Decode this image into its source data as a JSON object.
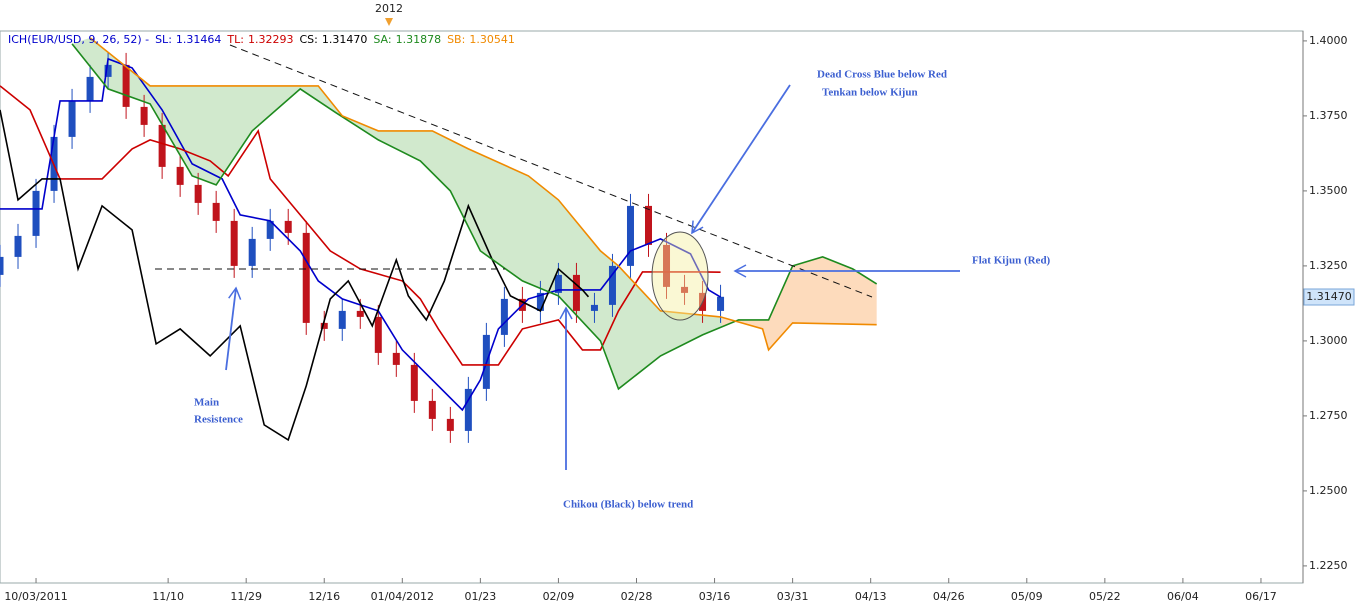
{
  "chart_data": {
    "type": "candlestick",
    "header": "ICH(EUR/USD, 9, 26, 52) -",
    "year_marker": "2012",
    "xlim": [
      0,
      217
    ],
    "ylim": [
      1.2193,
      1.4033
    ],
    "yticks": [
      {
        "value": 1.225,
        "label": "1.2250"
      },
      {
        "value": 1.25,
        "label": "1.2500"
      },
      {
        "value": 1.275,
        "label": "1.2750"
      },
      {
        "value": 1.3,
        "label": "1.3000"
      },
      {
        "value": 1.325,
        "label": "1.3250"
      },
      {
        "value": 1.35,
        "label": "1.3500"
      },
      {
        "value": 1.375,
        "label": "1.3750"
      },
      {
        "value": 1.4,
        "label": "1.4000"
      }
    ],
    "xticks": [
      {
        "value": 6,
        "label": "10/03/2011"
      },
      {
        "value": 28,
        "label": "11/10"
      },
      {
        "value": 41,
        "label": "11/29"
      },
      {
        "value": 54,
        "label": "12/16"
      },
      {
        "value": 67,
        "label": "01/04/2012"
      },
      {
        "value": 80,
        "label": "01/23"
      },
      {
        "value": 93,
        "label": "02/09"
      },
      {
        "value": 106,
        "label": "02/28"
      },
      {
        "value": 119,
        "label": "03/16"
      },
      {
        "value": 132,
        "label": "03/31"
      },
      {
        "value": 145,
        "label": "04/13"
      },
      {
        "value": 158,
        "label": "04/26"
      },
      {
        "value": 171,
        "label": "05/09"
      },
      {
        "value": 184,
        "label": "05/22"
      },
      {
        "value": 197,
        "label": "06/04"
      },
      {
        "value": 210,
        "label": "06/17"
      }
    ],
    "up_color": "#1f4fbf",
    "down_color": "#c0141c",
    "candles": {
      "x": [
        0,
        3,
        6,
        9,
        12,
        15,
        18,
        21,
        24,
        27,
        30,
        33,
        36,
        39,
        42,
        45,
        48,
        51,
        54,
        57,
        60,
        63,
        66,
        69,
        72,
        75,
        78,
        81,
        84,
        87,
        90,
        93,
        96,
        99,
        102,
        105,
        108,
        111,
        114,
        117,
        120
      ],
      "open": [
        1.322,
        1.328,
        1.335,
        1.35,
        1.368,
        1.38,
        1.388,
        1.392,
        1.378,
        1.372,
        1.358,
        1.352,
        1.346,
        1.34,
        1.325,
        1.334,
        1.34,
        1.336,
        1.306,
        1.304,
        1.31,
        1.308,
        1.296,
        1.292,
        1.28,
        1.274,
        1.27,
        1.284,
        1.302,
        1.314,
        1.31,
        1.316,
        1.322,
        1.31,
        1.312,
        1.325,
        1.345,
        1.332,
        1.318,
        1.316,
        1.31
      ],
      "high": [
        1.332,
        1.339,
        1.354,
        1.372,
        1.384,
        1.392,
        1.396,
        1.396,
        1.382,
        1.376,
        1.362,
        1.356,
        1.35,
        1.344,
        1.338,
        1.344,
        1.344,
        1.34,
        1.31,
        1.314,
        1.314,
        1.312,
        1.3,
        1.296,
        1.284,
        1.278,
        1.288,
        1.306,
        1.318,
        1.318,
        1.32,
        1.326,
        1.326,
        1.316,
        1.329,
        1.349,
        1.349,
        1.336,
        1.322,
        1.32,
        1.3187
      ],
      "low": [
        1.318,
        1.324,
        1.331,
        1.346,
        1.364,
        1.376,
        1.384,
        1.374,
        1.368,
        1.354,
        1.348,
        1.342,
        1.336,
        1.321,
        1.321,
        1.33,
        1.332,
        1.302,
        1.3,
        1.3,
        1.304,
        1.292,
        1.288,
        1.276,
        1.27,
        1.266,
        1.266,
        1.28,
        1.298,
        1.306,
        1.306,
        1.312,
        1.306,
        1.306,
        1.308,
        1.321,
        1.328,
        1.314,
        1.312,
        1.306,
        1.306
      ],
      "close": [
        1.328,
        1.335,
        1.35,
        1.368,
        1.38,
        1.388,
        1.392,
        1.378,
        1.372,
        1.358,
        1.352,
        1.346,
        1.34,
        1.325,
        1.334,
        1.34,
        1.336,
        1.306,
        1.304,
        1.31,
        1.308,
        1.296,
        1.292,
        1.28,
        1.274,
        1.27,
        1.284,
        1.302,
        1.314,
        1.31,
        1.316,
        1.322,
        1.31,
        1.312,
        1.325,
        1.345,
        1.332,
        1.318,
        1.316,
        1.31,
        1.3147
      ]
    },
    "series": [
      {
        "name": "SL:",
        "color": "#0000cc",
        "current": 1.31464,
        "x": [
          0,
          7,
          10,
          17,
          18,
          22,
          27,
          32,
          37,
          40,
          45,
          50,
          53,
          57,
          63,
          67,
          72,
          77,
          80,
          83,
          88,
          93,
          100,
          105,
          110,
          115,
          118,
          120
        ],
        "values": [
          1.344,
          1.344,
          1.38,
          1.38,
          1.394,
          1.391,
          1.377,
          1.359,
          1.354,
          1.342,
          1.34,
          1.33,
          1.32,
          1.314,
          1.31,
          1.297,
          1.287,
          1.277,
          1.287,
          1.304,
          1.314,
          1.317,
          1.317,
          1.33,
          1.334,
          1.329,
          1.317,
          1.3146
        ]
      },
      {
        "name": "TL:",
        "color": "#cc0000",
        "current": 1.32293,
        "x": [
          0,
          5,
          10,
          17,
          22,
          25,
          30,
          35,
          38,
          43,
          45,
          50,
          55,
          60,
          67,
          70,
          73,
          77,
          83,
          87,
          93,
          97,
          100,
          103,
          107,
          117,
          120
        ],
        "values": [
          1.385,
          1.377,
          1.354,
          1.354,
          1.364,
          1.367,
          1.364,
          1.36,
          1.355,
          1.37,
          1.354,
          1.342,
          1.33,
          1.324,
          1.32,
          1.314,
          1.304,
          1.292,
          1.292,
          1.304,
          1.307,
          1.297,
          1.297,
          1.31,
          1.323,
          1.323,
          1.3229
        ]
      },
      {
        "name": "CS:",
        "color": "#000000",
        "current": {
          "value": 1.3147,
          "label": "1.31470"
        },
        "x": [
          0,
          3,
          7,
          10,
          13,
          17,
          22,
          26,
          30,
          35,
          40,
          44,
          48,
          51,
          55,
          58,
          62,
          66,
          68,
          71,
          74,
          78,
          82,
          85,
          90,
          93,
          97,
          98
        ],
        "values": [
          1.377,
          1.347,
          1.354,
          1.354,
          1.324,
          1.345,
          1.337,
          1.299,
          1.304,
          1.295,
          1.305,
          1.272,
          1.267,
          1.285,
          1.314,
          1.32,
          1.305,
          1.327,
          1.315,
          1.307,
          1.32,
          1.345,
          1.327,
          1.315,
          1.31,
          1.324,
          1.317,
          1.3147
        ]
      },
      {
        "name": "SA:",
        "color": "#1e8a1e",
        "current": 1.31878,
        "x": [
          12,
          18,
          25,
          32,
          36,
          42,
          50,
          56,
          63,
          70,
          75,
          80,
          87,
          93,
          100,
          103,
          110,
          117,
          123,
          128,
          132,
          137,
          142,
          146
        ],
        "values": [
          1.399,
          1.384,
          1.379,
          1.355,
          1.352,
          1.37,
          1.384,
          1.376,
          1.367,
          1.36,
          1.35,
          1.33,
          1.32,
          1.315,
          1.3,
          1.284,
          1.295,
          1.302,
          1.307,
          1.307,
          1.325,
          1.328,
          1.324,
          1.319
        ]
      },
      {
        "name": "SB:",
        "color": "#f08a00",
        "current": 1.30541,
        "x": [
          15,
          25,
          33,
          43,
          53,
          57,
          63,
          72,
          78,
          88,
          93,
          100,
          103,
          110,
          120,
          127,
          128,
          132,
          146
        ],
        "values": [
          1.401,
          1.385,
          1.385,
          1.385,
          1.385,
          1.375,
          1.37,
          1.37,
          1.364,
          1.355,
          1.347,
          1.33,
          1.325,
          1.31,
          1.308,
          1.304,
          1.297,
          1.306,
          1.3054
        ]
      }
    ],
    "annotations": [
      "Dead Cross Blue below Red",
      "Tenkan below Kijun",
      "Flat Kijun (Red)",
      "Main",
      "Resistence",
      "Chikou (Black) below trend"
    ]
  }
}
